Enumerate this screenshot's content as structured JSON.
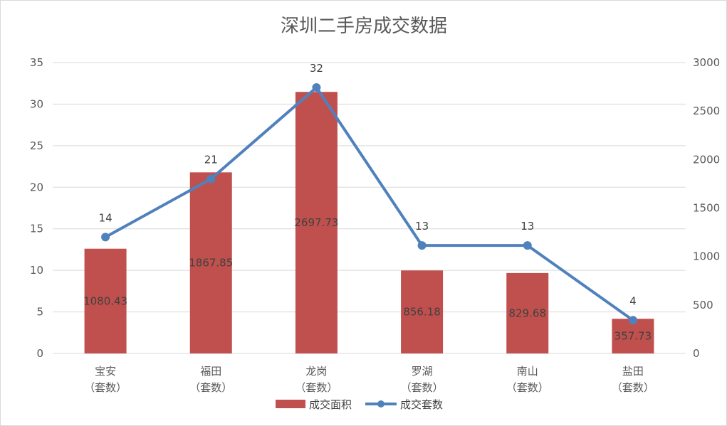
{
  "chart_data": {
    "type": "bar",
    "title": "深圳二手房成交数据",
    "categories": [
      [
        "宝安",
        "（套数）"
      ],
      [
        "福田",
        "（套数）"
      ],
      [
        "龙岗",
        "（套数）"
      ],
      [
        "罗湖",
        "（套数）"
      ],
      [
        "南山",
        "（套数）"
      ],
      [
        "盐田",
        "（套数）"
      ]
    ],
    "series": [
      {
        "name": "成交面积",
        "type": "bar",
        "axis": "right",
        "color": "#c0504d",
        "values": [
          1080.43,
          1867.85,
          2697.73,
          856.18,
          829.68,
          357.73
        ],
        "labels": [
          "1080.43",
          "1867.85",
          "2697.73",
          "856.18",
          "829.68",
          "357.73"
        ]
      },
      {
        "name": "成交套数",
        "type": "line",
        "axis": "left",
        "color": "#4f81bd",
        "values": [
          14,
          21,
          32,
          13,
          13,
          4
        ],
        "labels": [
          "14",
          "21",
          "32",
          "13",
          "13",
          "4"
        ]
      }
    ],
    "y_left": {
      "min": 0,
      "max": 35,
      "ticks": [
        0,
        5,
        10,
        15,
        20,
        25,
        30,
        35
      ]
    },
    "y_right": {
      "min": 0,
      "max": 3000,
      "ticks": [
        0,
        500,
        1000,
        1500,
        2000,
        2500,
        3000
      ]
    },
    "grid": true,
    "legend_position": "bottom"
  }
}
